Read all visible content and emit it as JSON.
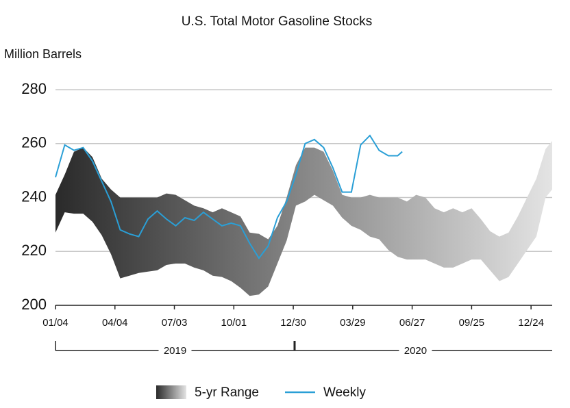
{
  "chart_data": {
    "type": "line",
    "title": "U.S. Total Motor Gasoline Stocks",
    "y_label": "Million Barrels",
    "xlim": [
      "2019-01-04",
      "2021-01-25"
    ],
    "xticks": [
      {
        "value": "2019-01-04",
        "label": "01/04"
      },
      {
        "value": "2019-04-04",
        "label": "04/04"
      },
      {
        "value": "2019-07-03",
        "label": "07/03"
      },
      {
        "value": "2019-10-01",
        "label": "10/01"
      },
      {
        "value": "2019-12-30",
        "label": "12/30"
      },
      {
        "value": "2020-03-29",
        "label": "03/29"
      },
      {
        "value": "2020-06-27",
        "label": "06/27"
      },
      {
        "value": "2020-09-25",
        "label": "09/25"
      },
      {
        "value": "2020-12-24",
        "label": "12/24"
      }
    ],
    "year_groups": [
      "2019",
      "2020"
    ],
    "ylim": [
      200,
      280
    ],
    "yticks": [
      200,
      220,
      240,
      260,
      280
    ],
    "grid": true,
    "legend": "bottom",
    "series": [
      {
        "name": "5-yr Range",
        "kind": "band",
        "colors": [
          "#2a2a2a",
          "#e4e4e4"
        ],
        "x": [
          "2019-01-04",
          "2019-01-18",
          "2019-02-01",
          "2019-02-15",
          "2019-03-01",
          "2019-03-15",
          "2019-03-29",
          "2019-04-12",
          "2019-04-26",
          "2019-05-10",
          "2019-05-24",
          "2019-06-07",
          "2019-06-21",
          "2019-07-05",
          "2019-07-19",
          "2019-08-02",
          "2019-08-16",
          "2019-08-30",
          "2019-09-13",
          "2019-09-27",
          "2019-10-11",
          "2019-10-25",
          "2019-11-08",
          "2019-11-22",
          "2019-12-06",
          "2019-12-20",
          "2020-01-03",
          "2020-01-17",
          "2020-01-31",
          "2020-02-14",
          "2020-02-28",
          "2020-03-13",
          "2020-03-27",
          "2020-04-10",
          "2020-04-24",
          "2020-05-08",
          "2020-05-22",
          "2020-06-05",
          "2020-06-19",
          "2020-07-03",
          "2020-07-17",
          "2020-07-31",
          "2020-08-14",
          "2020-08-28",
          "2020-09-11",
          "2020-09-25",
          "2020-10-09",
          "2020-10-23",
          "2020-11-06",
          "2020-11-20",
          "2020-12-04",
          "2020-12-18",
          "2021-01-01",
          "2021-01-15",
          "2021-01-29"
        ],
        "high": [
          241,
          248.5,
          257,
          258.5,
          255,
          247,
          243,
          240,
          240,
          240,
          240,
          240,
          241.5,
          241,
          239,
          237,
          236,
          234.5,
          236,
          234.5,
          233,
          227,
          226.5,
          224.5,
          229.5,
          240,
          252,
          258.5,
          258.5,
          257,
          250,
          241,
          240,
          240,
          241,
          240,
          240,
          240,
          238.5,
          241,
          240,
          236,
          234.5,
          236,
          234.5,
          236,
          232,
          227.5,
          225.5,
          227,
          233,
          240,
          247,
          258,
          261
        ],
        "low": [
          227,
          234.5,
          234,
          234,
          231,
          226,
          219,
          210,
          211,
          212,
          212.5,
          213,
          215,
          215.5,
          215.5,
          214,
          213,
          211,
          210.5,
          209,
          206.5,
          203.5,
          204,
          207,
          215.5,
          224,
          237,
          238.5,
          241,
          239,
          237,
          232.5,
          229.5,
          228,
          225.5,
          224.5,
          220.5,
          218,
          217,
          217,
          217,
          215.5,
          214,
          214,
          215.5,
          217,
          217,
          213,
          209,
          210.5,
          215.5,
          220.5,
          225.5,
          240,
          243
        ]
      },
      {
        "name": "Weekly",
        "kind": "line",
        "color": "#2a9fd6",
        "x": [
          "2019-01-04",
          "2019-01-18",
          "2019-02-01",
          "2019-02-15",
          "2019-03-01",
          "2019-03-15",
          "2019-03-29",
          "2019-04-12",
          "2019-04-26",
          "2019-05-10",
          "2019-05-24",
          "2019-06-07",
          "2019-06-21",
          "2019-07-05",
          "2019-07-19",
          "2019-08-02",
          "2019-08-16",
          "2019-08-30",
          "2019-09-13",
          "2019-09-27",
          "2019-10-11",
          "2019-10-25",
          "2019-11-08",
          "2019-11-22",
          "2019-12-06",
          "2019-12-20",
          "2020-01-03",
          "2020-01-17",
          "2020-01-31",
          "2020-02-14",
          "2020-02-28",
          "2020-03-13",
          "2020-03-27",
          "2020-04-10",
          "2020-04-24",
          "2020-05-08",
          "2020-05-22",
          "2020-06-05",
          "2020-06-12"
        ],
        "values": [
          247.5,
          259.5,
          257.5,
          258.5,
          253.5,
          246,
          238.5,
          228,
          226.5,
          225.5,
          232,
          235,
          232,
          229.5,
          232.5,
          231.5,
          234.5,
          232,
          229.5,
          230.5,
          229.5,
          223,
          217.5,
          222,
          232.5,
          238.5,
          248.5,
          260,
          261.5,
          258.5,
          251,
          242,
          242,
          259.5,
          263,
          257.5,
          255.5,
          255.5,
          257
        ]
      }
    ]
  }
}
